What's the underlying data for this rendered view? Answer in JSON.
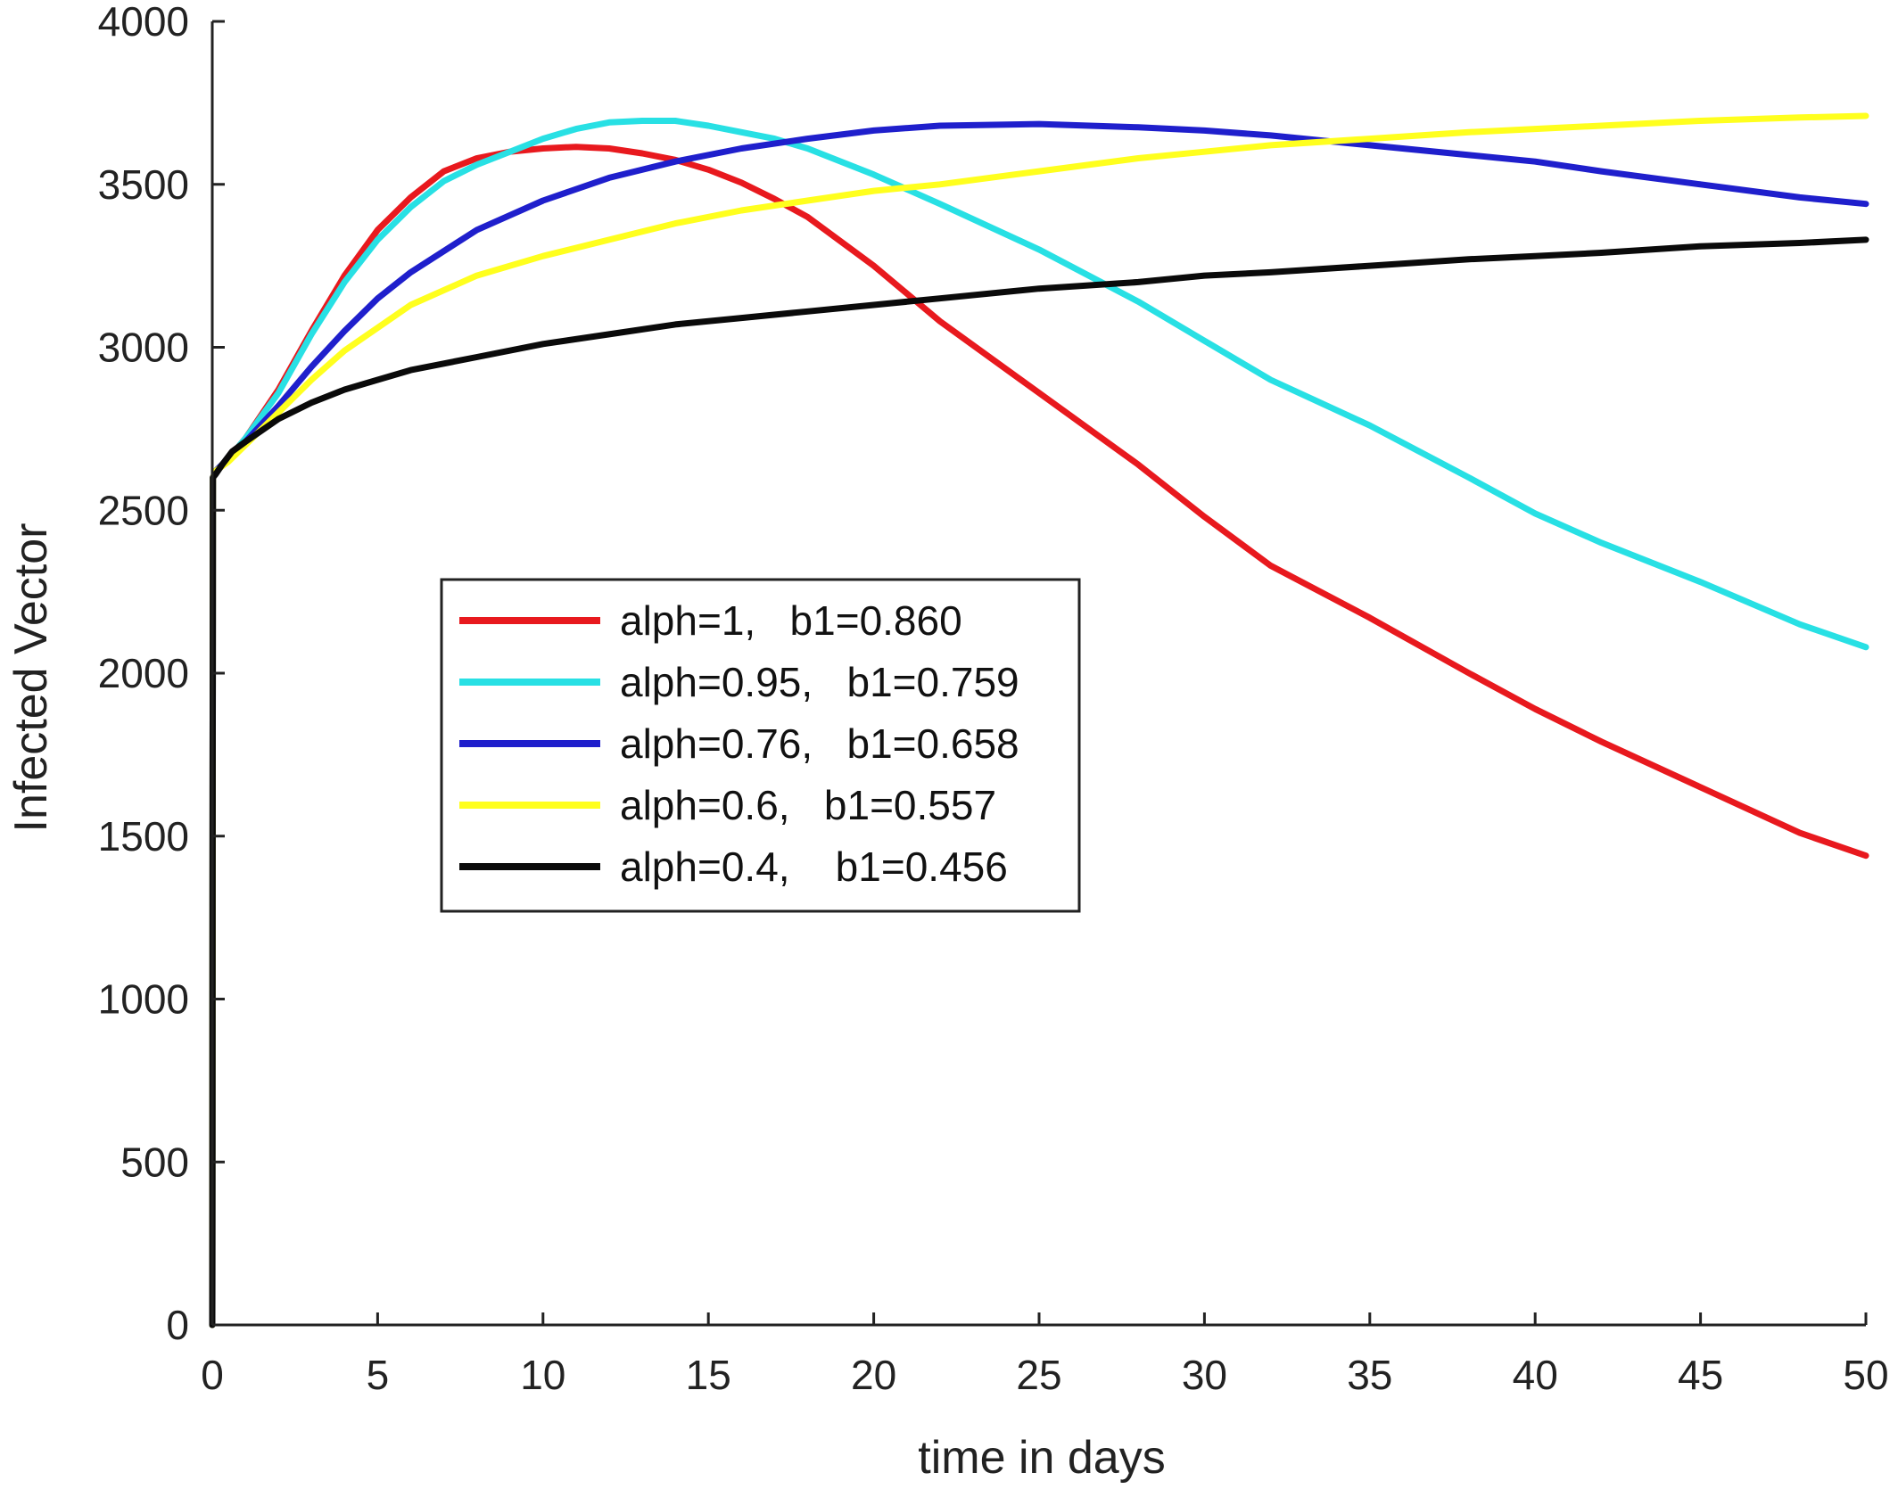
{
  "chart_data": {
    "type": "line",
    "title": "",
    "xlabel": "time in days",
    "ylabel": "Infected Vector",
    "xlim": [
      0,
      50
    ],
    "ylim": [
      0,
      4000
    ],
    "xticks": [
      0,
      5,
      10,
      15,
      20,
      25,
      30,
      35,
      40,
      45,
      50
    ],
    "yticks": [
      0,
      500,
      1000,
      1500,
      2000,
      2500,
      3000,
      3500,
      4000
    ],
    "grid": false,
    "legend_position": "center-left",
    "series": [
      {
        "name": "alph=1,   b1=0.860",
        "color": "#e8191e",
        "x": [
          0,
          0.02,
          0.1,
          0.5,
          1,
          2,
          3,
          4,
          5,
          6,
          7,
          8,
          9,
          10,
          11,
          12,
          13,
          14,
          15,
          16,
          17,
          18,
          20,
          22,
          25,
          28,
          30,
          32,
          35,
          38,
          40,
          42,
          45,
          48,
          50
        ],
        "y": [
          0,
          2600,
          2620,
          2660,
          2720,
          2870,
          3050,
          3220,
          3360,
          3460,
          3540,
          3580,
          3600,
          3610,
          3615,
          3610,
          3595,
          3575,
          3545,
          3505,
          3455,
          3400,
          3250,
          3080,
          2860,
          2640,
          2480,
          2330,
          2170,
          2000,
          1890,
          1790,
          1650,
          1510,
          1440
        ]
      },
      {
        "name": "alph=0.95,   b1=0.759",
        "color": "#28e0e4",
        "x": [
          0,
          0.02,
          0.1,
          0.5,
          1,
          2,
          3,
          4,
          5,
          6,
          7,
          8,
          9,
          10,
          11,
          12,
          13,
          14,
          15,
          16,
          17,
          18,
          20,
          22,
          25,
          28,
          30,
          32,
          35,
          38,
          40,
          42,
          45,
          48,
          50
        ],
        "y": [
          0,
          2600,
          2620,
          2660,
          2720,
          2860,
          3040,
          3200,
          3330,
          3430,
          3510,
          3560,
          3600,
          3640,
          3670,
          3690,
          3695,
          3695,
          3680,
          3660,
          3640,
          3610,
          3530,
          3440,
          3300,
          3140,
          3020,
          2900,
          2760,
          2600,
          2490,
          2400,
          2280,
          2150,
          2080
        ]
      },
      {
        "name": "alph=0.76,   b1=0.658",
        "color": "#1f1fcc",
        "x": [
          0,
          0.02,
          0.1,
          0.5,
          1,
          2,
          3,
          4,
          5,
          6,
          8,
          10,
          12,
          14,
          16,
          18,
          20,
          22,
          25,
          28,
          30,
          32,
          35,
          38,
          40,
          42,
          45,
          48,
          50
        ],
        "y": [
          0,
          2600,
          2620,
          2660,
          2710,
          2820,
          2940,
          3050,
          3150,
          3230,
          3360,
          3450,
          3520,
          3570,
          3610,
          3640,
          3665,
          3680,
          3685,
          3675,
          3665,
          3650,
          3620,
          3590,
          3570,
          3540,
          3500,
          3460,
          3440
        ]
      },
      {
        "name": "alph=0.6,   b1=0.557",
        "color": "#ffff1e",
        "x": [
          0,
          0.02,
          0.1,
          0.5,
          1,
          2,
          3,
          4,
          5,
          6,
          8,
          10,
          12,
          14,
          16,
          18,
          20,
          22,
          25,
          28,
          30,
          32,
          35,
          38,
          40,
          42,
          45,
          48,
          50
        ],
        "y": [
          0,
          2600,
          2620,
          2650,
          2700,
          2800,
          2900,
          2990,
          3060,
          3130,
          3220,
          3280,
          3330,
          3380,
          3420,
          3450,
          3480,
          3500,
          3540,
          3580,
          3600,
          3620,
          3640,
          3660,
          3670,
          3680,
          3695,
          3705,
          3710
        ]
      },
      {
        "name": "alph=0.4,    b1=0.456",
        "color": "#0a0a0a",
        "x": [
          0,
          0.02,
          0.1,
          0.3,
          0.6,
          1,
          2,
          3,
          4,
          5,
          6,
          8,
          10,
          12,
          14,
          16,
          18,
          20,
          22,
          25,
          28,
          30,
          32,
          35,
          38,
          40,
          42,
          45,
          48,
          50
        ],
        "y": [
          0,
          2600,
          2610,
          2640,
          2680,
          2710,
          2780,
          2830,
          2870,
          2900,
          2930,
          2970,
          3010,
          3040,
          3070,
          3090,
          3110,
          3130,
          3150,
          3180,
          3200,
          3220,
          3230,
          3250,
          3270,
          3280,
          3290,
          3310,
          3320,
          3330
        ]
      }
    ]
  }
}
